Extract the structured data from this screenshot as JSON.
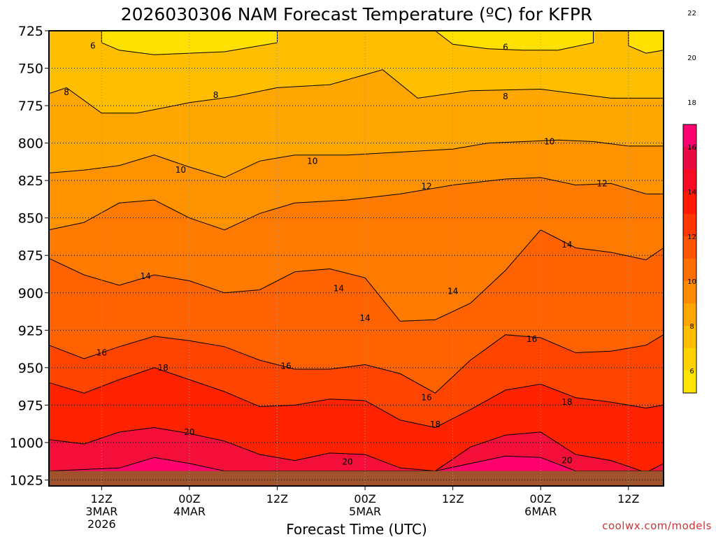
{
  "chart_data": {
    "type": "heatmap",
    "title": "2026030306 NAM Forecast Temperature (ºC) for KFPR",
    "xlabel": "Forecast Time (UTC)",
    "credit": "coolwx.com/models",
    "y_axis": {
      "ticks": [
        "725",
        "750",
        "775",
        "800",
        "825",
        "850",
        "875",
        "900",
        "925",
        "950",
        "975",
        "1000",
        "1025"
      ],
      "ylim": [
        725,
        1029
      ],
      "inverted": true,
      "grid": true
    },
    "x_axis": {
      "unit": "forecast hour",
      "xlim": [
        6,
        76
      ],
      "grid": true,
      "ticks": [
        {
          "hour": 12,
          "lines": [
            "12Z",
            "3MAR",
            "2026"
          ]
        },
        {
          "hour": 22,
          "lines": [
            "00Z",
            "4MAR"
          ]
        },
        {
          "hour": 32,
          "lines": [
            "12Z"
          ]
        },
        {
          "hour": 42,
          "lines": [
            "00Z",
            "5MAR"
          ]
        },
        {
          "hour": 52,
          "lines": [
            "12Z"
          ]
        },
        {
          "hour": 62,
          "lines": [
            "00Z",
            "6MAR"
          ]
        },
        {
          "hour": 72,
          "lines": [
            "12Z"
          ]
        }
      ]
    },
    "colorbar": {
      "labels": [
        "6",
        "8",
        "10",
        "12",
        "14",
        "16",
        "18",
        "20",
        "22"
      ],
      "colors": [
        "#ffe600",
        "#ffd200",
        "#ffbf00",
        "#ffa600",
        "#ff8c00",
        "#ff6e00",
        "#ff5400",
        "#ff3600",
        "#ff1a00",
        "#f70a22",
        "#ea0844",
        "#ff0070"
      ]
    },
    "ground_color": "#a0522d",
    "series": [
      {
        "name": "8",
        "points": [
          [
            6,
            767
          ],
          [
            8,
            763
          ],
          [
            12,
            780
          ],
          [
            16,
            780
          ],
          [
            22,
            773
          ],
          [
            27,
            769
          ],
          [
            32,
            763
          ],
          [
            38,
            761
          ],
          [
            44,
            751
          ],
          [
            48,
            770
          ],
          [
            54,
            765
          ],
          [
            62,
            764
          ],
          [
            70,
            770
          ],
          [
            76,
            770
          ]
        ]
      },
      {
        "name": "10",
        "points": [
          [
            6,
            820
          ],
          [
            10,
            818
          ],
          [
            14,
            815
          ],
          [
            18,
            808
          ],
          [
            22,
            816
          ],
          [
            26,
            823
          ],
          [
            30,
            812
          ],
          [
            34,
            808
          ],
          [
            40,
            808
          ],
          [
            46,
            806
          ],
          [
            52,
            804
          ],
          [
            56,
            800
          ],
          [
            60,
            799
          ],
          [
            64,
            798
          ],
          [
            68,
            799
          ],
          [
            72,
            802
          ],
          [
            76,
            802
          ]
        ]
      },
      {
        "name": "12",
        "points": [
          [
            6,
            858
          ],
          [
            10,
            853
          ],
          [
            14,
            840
          ],
          [
            18,
            838
          ],
          [
            22,
            850
          ],
          [
            26,
            858
          ],
          [
            30,
            847
          ],
          [
            34,
            840
          ],
          [
            40,
            838
          ],
          [
            46,
            834
          ],
          [
            52,
            828
          ],
          [
            58,
            824
          ],
          [
            62,
            823
          ],
          [
            66,
            828
          ],
          [
            70,
            827
          ],
          [
            74,
            834
          ],
          [
            76,
            834
          ]
        ]
      },
      {
        "name": "14",
        "points": [
          [
            6,
            877
          ],
          [
            10,
            888
          ],
          [
            14,
            895
          ],
          [
            18,
            888
          ],
          [
            22,
            892
          ],
          [
            26,
            900
          ],
          [
            30,
            898
          ],
          [
            34,
            886
          ],
          [
            38,
            884
          ],
          [
            42,
            890
          ],
          [
            46,
            919
          ],
          [
            50,
            918
          ],
          [
            54,
            907
          ],
          [
            58,
            885
          ],
          [
            62,
            858
          ],
          [
            66,
            870
          ],
          [
            70,
            873
          ],
          [
            74,
            878
          ],
          [
            76,
            870
          ]
        ]
      },
      {
        "name": "16",
        "points": [
          [
            6,
            935
          ],
          [
            10,
            944
          ],
          [
            14,
            936
          ],
          [
            18,
            929
          ],
          [
            22,
            932
          ],
          [
            26,
            936
          ],
          [
            30,
            945
          ],
          [
            34,
            951
          ],
          [
            38,
            951
          ],
          [
            42,
            948
          ],
          [
            46,
            954
          ],
          [
            50,
            967
          ],
          [
            54,
            945
          ],
          [
            58,
            928
          ],
          [
            62,
            930
          ],
          [
            66,
            940
          ],
          [
            70,
            939
          ],
          [
            74,
            935
          ],
          [
            76,
            928
          ]
        ]
      },
      {
        "name": "18",
        "points": [
          [
            6,
            960
          ],
          [
            10,
            967
          ],
          [
            14,
            958
          ],
          [
            18,
            950
          ],
          [
            22,
            958
          ],
          [
            26,
            966
          ],
          [
            30,
            976
          ],
          [
            34,
            975
          ],
          [
            38,
            971
          ],
          [
            42,
            972
          ],
          [
            46,
            985
          ],
          [
            50,
            990
          ],
          [
            54,
            978
          ],
          [
            58,
            965
          ],
          [
            62,
            961
          ],
          [
            66,
            970
          ],
          [
            70,
            973
          ],
          [
            74,
            977
          ],
          [
            76,
            975
          ]
        ]
      },
      {
        "name": "20",
        "points": [
          [
            6,
            998
          ],
          [
            10,
            1001
          ],
          [
            14,
            993
          ],
          [
            18,
            990
          ],
          [
            22,
            994
          ],
          [
            26,
            999
          ],
          [
            30,
            1008
          ],
          [
            34,
            1012
          ],
          [
            38,
            1007
          ],
          [
            42,
            1008
          ],
          [
            46,
            1017
          ],
          [
            50,
            1019
          ],
          [
            54,
            1003
          ],
          [
            58,
            995
          ],
          [
            62,
            993
          ],
          [
            66,
            1008
          ],
          [
            70,
            1012
          ],
          [
            74,
            1020
          ],
          [
            76,
            1014
          ]
        ]
      },
      {
        "name": "22",
        "points": [
          [
            6,
            1019
          ],
          [
            14,
            1017
          ],
          [
            18,
            1010
          ],
          [
            22,
            1014
          ],
          [
            26,
            1019
          ],
          [
            50,
            1019
          ],
          [
            54,
            1014
          ],
          [
            58,
            1009
          ],
          [
            62,
            1010
          ],
          [
            66,
            1019
          ],
          [
            76,
            1019
          ]
        ]
      }
    ],
    "top_pockets": [
      {
        "name": "6",
        "points": [
          [
            12,
            725
          ],
          [
            12,
            733
          ],
          [
            14,
            738
          ],
          [
            18,
            741
          ],
          [
            22,
            740
          ],
          [
            26,
            739
          ],
          [
            32,
            733
          ],
          [
            32,
            725
          ]
        ]
      },
      {
        "name": "6",
        "points": [
          [
            50,
            725
          ],
          [
            52,
            734
          ],
          [
            56,
            737
          ],
          [
            60,
            738
          ],
          [
            64,
            738
          ],
          [
            68,
            733
          ],
          [
            68,
            725
          ]
        ]
      },
      {
        "name": "6",
        "points": [
          [
            72,
            725
          ],
          [
            72,
            735
          ],
          [
            74,
            740
          ],
          [
            76,
            738
          ],
          [
            76,
            725
          ]
        ]
      }
    ],
    "contour_labels": [
      {
        "text": "6",
        "x": 11,
        "y": 735
      },
      {
        "text": "6",
        "x": 58,
        "y": 736
      },
      {
        "text": "8",
        "x": 8,
        "y": 766
      },
      {
        "text": "8",
        "x": 25,
        "y": 768
      },
      {
        "text": "8",
        "x": 58,
        "y": 769
      },
      {
        "text": "10",
        "x": 21,
        "y": 818
      },
      {
        "text": "10",
        "x": 36,
        "y": 812
      },
      {
        "text": "10",
        "x": 63,
        "y": 799
      },
      {
        "text": "12",
        "x": 49,
        "y": 829
      },
      {
        "text": "12",
        "x": 69,
        "y": 827
      },
      {
        "text": "14",
        "x": 17,
        "y": 889
      },
      {
        "text": "14",
        "x": 39,
        "y": 897
      },
      {
        "text": "14",
        "x": 42,
        "y": 917
      },
      {
        "text": "14",
        "x": 52,
        "y": 899
      },
      {
        "text": "14",
        "x": 65,
        "y": 868
      },
      {
        "text": "16",
        "x": 12,
        "y": 940
      },
      {
        "text": "16",
        "x": 33,
        "y": 949
      },
      {
        "text": "16",
        "x": 49,
        "y": 970
      },
      {
        "text": "16",
        "x": 61,
        "y": 931
      },
      {
        "text": "18",
        "x": 19,
        "y": 950
      },
      {
        "text": "18",
        "x": 50,
        "y": 988
      },
      {
        "text": "18",
        "x": 65,
        "y": 973
      },
      {
        "text": "20",
        "x": 22,
        "y": 993
      },
      {
        "text": "20",
        "x": 40,
        "y": 1013
      },
      {
        "text": "20",
        "x": 65,
        "y": 1012
      }
    ]
  }
}
